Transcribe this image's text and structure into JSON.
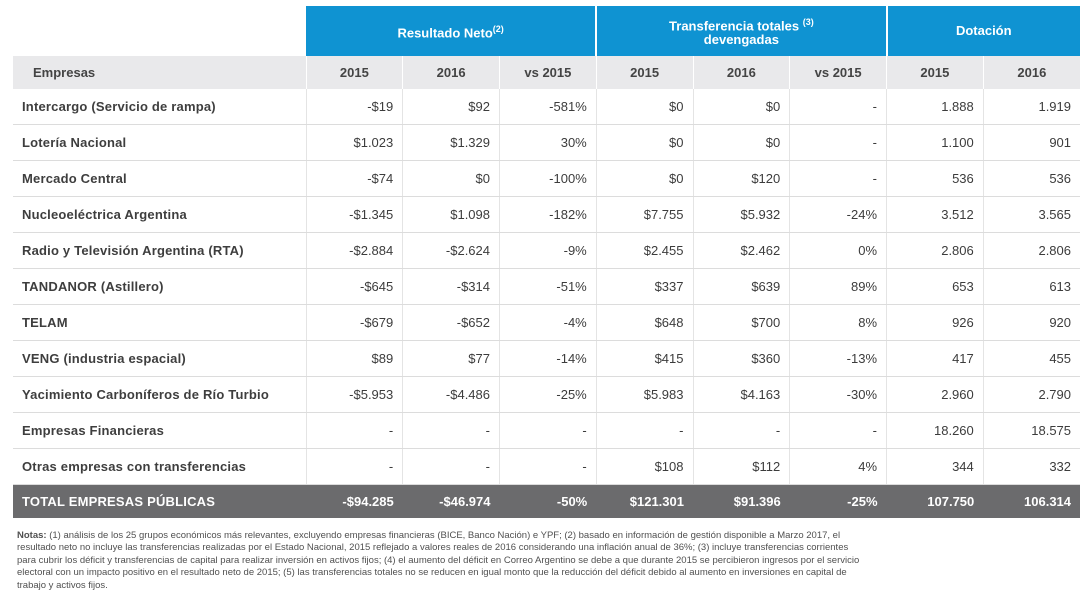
{
  "header": {
    "resultado_neto": "Resultado Neto",
    "resultado_neto_note": "(2)",
    "transferencia_line1": "Transferencia totales",
    "transferencia_note": "(3)",
    "transferencia_line2": "devengadas",
    "dotacion": "Dotación"
  },
  "subheader": {
    "empresas": "Empresas",
    "cols": [
      "2015",
      "2016",
      "vs 2015",
      "2015",
      "2016",
      "vs 2015",
      "2015",
      "2016"
    ]
  },
  "rows": [
    {
      "name": "Intercargo (Servicio de rampa)",
      "values": [
        "-$19",
        "$92",
        "-581%",
        "$0",
        "$0",
        "-",
        "1.888",
        "1.919"
      ]
    },
    {
      "name": "Lotería Nacional",
      "values": [
        "$1.023",
        "$1.329",
        "30%",
        "$0",
        "$0",
        "-",
        "1.100",
        "901"
      ]
    },
    {
      "name": "Mercado Central",
      "values": [
        "-$74",
        "$0",
        "-100%",
        "$0",
        "$120",
        "-",
        "536",
        "536"
      ]
    },
    {
      "name": "Nucleoeléctrica Argentina",
      "values": [
        "-$1.345",
        "$1.098",
        "-182%",
        "$7.755",
        "$5.932",
        "-24%",
        "3.512",
        "3.565"
      ]
    },
    {
      "name": "Radio y Televisión Argentina (RTA)",
      "values": [
        "-$2.884",
        "-$2.624",
        "-9%",
        "$2.455",
        "$2.462",
        "0%",
        "2.806",
        "2.806"
      ]
    },
    {
      "name": "TANDANOR (Astillero)",
      "values": [
        "-$645",
        "-$314",
        "-51%",
        "$337",
        "$639",
        "89%",
        "653",
        "613"
      ]
    },
    {
      "name": "TELAM",
      "values": [
        "-$679",
        "-$652",
        "-4%",
        "$648",
        "$700",
        "8%",
        "926",
        "920"
      ]
    },
    {
      "name": "VENG (industria espacial)",
      "values": [
        "$89",
        "$77",
        "-14%",
        "$415",
        "$360",
        "-13%",
        "417",
        "455"
      ]
    },
    {
      "name": "Yacimiento Carboníferos de Río Turbio",
      "values": [
        "-$5.953",
        "-$4.486",
        "-25%",
        "$5.983",
        "$4.163",
        "-30%",
        "2.960",
        "2.790"
      ]
    },
    {
      "name": "Empresas Financieras",
      "values": [
        "-",
        "-",
        "-",
        "-",
        "-",
        "-",
        "18.260",
        "18.575"
      ]
    },
    {
      "name": "Otras empresas con transferencias",
      "values": [
        "-",
        "-",
        "-",
        "$108",
        "$112",
        "4%",
        "344",
        "332"
      ]
    }
  ],
  "total": {
    "name": "TOTAL EMPRESAS PÚBLICAS",
    "values": [
      "-$94.285",
      "-$46.974",
      "-50%",
      "$121.301",
      "$91.396",
      "-25%",
      "107.750",
      "106.314"
    ]
  },
  "notes": {
    "label": "Notas:",
    "text": " (1) análisis de los 25 grupos económicos más relevantes, excluyendo empresas financieras (BICE, Banco Nación) e YPF; (2) basado en información de gestión disponible a Marzo 2017, el resultado neto no incluye las transferencias realizadas por el Estado Nacional, 2015 reflejado a valores reales de 2016 considerando una inflación anual de 36%; (3) incluye transferencias corrientes para cubrir los déficit y transferencias de capital para realizar inversión en activos fijos; (4) el aumento del déficit en Correo Argentino se debe a que durante 2015 se percibieron ingresos por el servicio electoral con un impacto positivo en el resultado neto de 2015; (5) las transferencias totales no se reducen en igual monto que la reducción del déficit debido al aumento en inversiones en capital de trabajo y activos fijos."
  },
  "colors": {
    "header_blue": "#0f93d2",
    "subheader_gray": "#e9e9eb",
    "total_gray": "#6b6b6d"
  }
}
